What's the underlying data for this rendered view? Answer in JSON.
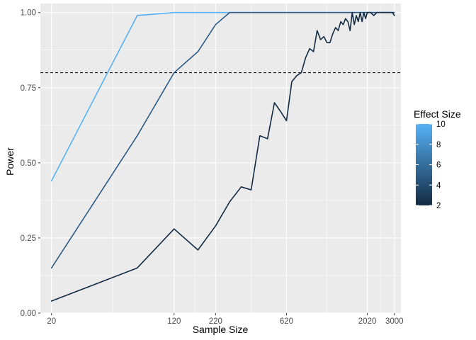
{
  "chart_data": {
    "type": "line",
    "title": "",
    "xlabel": "Sample Size",
    "ylabel": "Power",
    "x_scale": "log10",
    "xlim": [
      17,
      3300
    ],
    "ylim": [
      0,
      1.03
    ],
    "x_ticks": [
      20,
      120,
      220,
      620,
      2020,
      3000
    ],
    "x_tick_labels": [
      "20",
      "120",
      "220",
      "620",
      "2020",
      "3000"
    ],
    "y_ticks": [
      0,
      0.25,
      0.5,
      0.75,
      1
    ],
    "y_tick_labels": [
      "0.00",
      "0.25",
      "0.50",
      "0.75",
      "1.00"
    ],
    "reference_line": {
      "y": 0.8,
      "style": "dashed",
      "color": "#000000"
    },
    "legend": {
      "title": "Effect Size",
      "position": "right",
      "type": "colorbar",
      "min": 2,
      "max": 10,
      "ticks": [
        2,
        4,
        6,
        8,
        10
      ],
      "tick_labels": [
        "2",
        "4",
        "6",
        "8",
        "10"
      ],
      "color_low": "#132B43",
      "color_high": "#56B1F7"
    },
    "grid": true,
    "background": "#EBEBEB",
    "series": [
      {
        "name": "Effect Size 10",
        "effect_size": 10,
        "color": "#56B1F7",
        "x": [
          20,
          70,
          120,
          170,
          220,
          270,
          320,
          620,
          1020,
          2020,
          3000
        ],
        "y": [
          0.44,
          0.99,
          1.0,
          1.0,
          1.0,
          1.0,
          1.0,
          1.0,
          1.0,
          1.0,
          1.0
        ]
      },
      {
        "name": "Effect Size 5",
        "effect_size": 5,
        "color": "#2B5B86",
        "x": [
          20,
          70,
          120,
          170,
          220,
          270,
          320,
          620,
          1020,
          2020,
          3000
        ],
        "y": [
          0.15,
          0.59,
          0.8,
          0.87,
          0.96,
          1.0,
          1.0,
          1.0,
          1.0,
          1.0,
          1.0
        ]
      },
      {
        "name": "Effect Size 2",
        "effect_size": 2,
        "color": "#132B43",
        "x": [
          20,
          70,
          120,
          170,
          220,
          270,
          320,
          370,
          420,
          470,
          520,
          570,
          620,
          670,
          720,
          770,
          820,
          870,
          920,
          970,
          1020,
          1070,
          1120,
          1170,
          1220,
          1270,
          1320,
          1370,
          1420,
          1470,
          1520,
          1570,
          1620,
          1670,
          1720,
          1770,
          1820,
          1870,
          1920,
          1970,
          2020,
          2120,
          2220,
          2320,
          2420,
          2520,
          2620,
          2720,
          2820,
          2920,
          3000
        ],
        "y": [
          0.04,
          0.15,
          0.28,
          0.21,
          0.29,
          0.37,
          0.42,
          0.41,
          0.59,
          0.58,
          0.7,
          0.67,
          0.64,
          0.77,
          0.79,
          0.8,
          0.85,
          0.88,
          0.87,
          0.94,
          0.91,
          0.92,
          0.9,
          0.9,
          0.93,
          0.95,
          0.94,
          0.97,
          0.96,
          0.98,
          0.97,
          0.94,
          1.0,
          0.96,
          0.99,
          0.97,
          1.0,
          0.97,
          1.0,
          0.98,
          1.0,
          1.0,
          0.99,
          1.0,
          1.0,
          1.0,
          1.0,
          1.0,
          1.0,
          1.0,
          0.99
        ]
      }
    ]
  }
}
